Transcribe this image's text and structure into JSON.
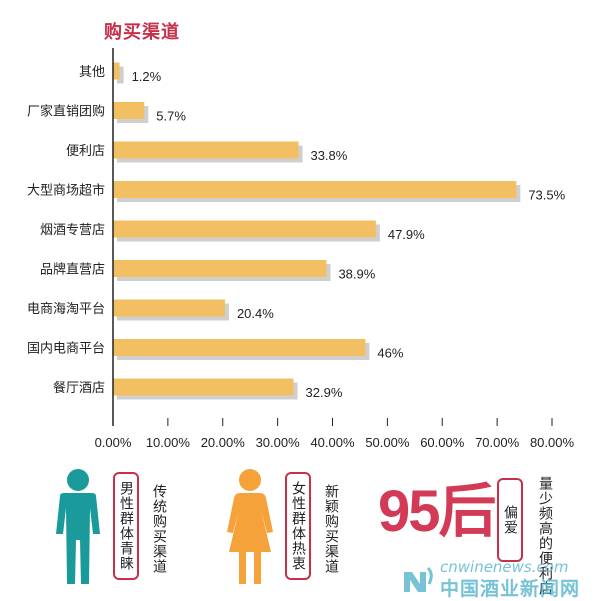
{
  "chart_data": {
    "type": "bar",
    "orientation": "horizontal",
    "title": "购买渠道",
    "categories": [
      "其他",
      "厂家直销团购",
      "便利店",
      "大型商场超市",
      "烟酒专营店",
      "品牌直营店",
      "电商海淘平台",
      "国内电商平台",
      "餐厅酒店"
    ],
    "values": [
      1.2,
      5.7,
      33.8,
      73.5,
      47.9,
      38.9,
      20.4,
      46,
      32.9
    ],
    "value_labels": [
      "1.2%",
      "5.7%",
      "33.8%",
      "73.5%",
      "47.9%",
      "38.9%",
      "20.4%",
      "46%",
      "32.9%"
    ],
    "xlim": [
      0,
      80
    ],
    "x_ticks": [
      "0.00%",
      "10.00%",
      "20.00%",
      "30.00%",
      "40.00%",
      "50.00%",
      "60.00%",
      "70.00%",
      "80.00%"
    ],
    "xlabel": "",
    "ylabel": "",
    "grid": false,
    "bar_color": "#f2c063",
    "shadow_color": "#cfcfcf"
  },
  "notes": {
    "male_label": "男性群体青睐",
    "male_text": "传统购买渠道",
    "female_label": "女性群体热衷",
    "female_text": "新颖购买渠道",
    "big_text": "95后",
    "pref_label": "偏爱",
    "pref_text": "量少频高的便利店",
    "male_color": "#1a9a9a",
    "female_color": "#f5a23a",
    "accent_color": "#c8304a"
  },
  "watermark": {
    "url": "cnwinenews.com",
    "cn": "中国酒业新闻网"
  }
}
